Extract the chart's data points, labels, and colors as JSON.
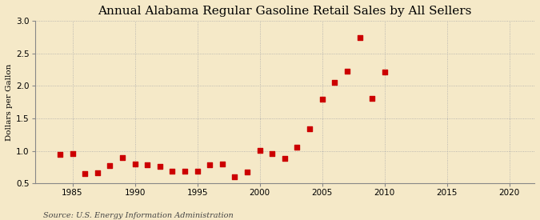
{
  "title": "Annual Alabama Regular Gasoline Retail Sales by All Sellers",
  "ylabel": "Dollars per Gallon",
  "source": "Source: U.S. Energy Information Administration",
  "background_color": "#f5e9c8",
  "xlim": [
    1982,
    2022
  ],
  "ylim": [
    0.5,
    3.0
  ],
  "xticks": [
    1985,
    1990,
    1995,
    2000,
    2005,
    2010,
    2015,
    2020
  ],
  "yticks": [
    0.5,
    1.0,
    1.5,
    2.0,
    2.5,
    3.0
  ],
  "years": [
    1984,
    1985,
    1986,
    1987,
    1988,
    1989,
    1990,
    1991,
    1992,
    1993,
    1994,
    1995,
    1996,
    1997,
    1998,
    1999,
    2000,
    2001,
    2002,
    2003,
    2004,
    2005,
    2006,
    2007,
    2008,
    2009,
    2010
  ],
  "values": [
    0.95,
    0.955,
    0.655,
    0.66,
    0.775,
    0.895,
    0.8,
    0.78,
    0.755,
    0.69,
    0.685,
    0.685,
    0.79,
    0.8,
    0.6,
    0.67,
    1.01,
    0.955,
    0.88,
    1.05,
    1.34,
    1.79,
    2.06,
    2.23,
    2.74,
    1.805,
    2.22
  ],
  "marker_color": "#cc0000",
  "marker_size": 18,
  "grid_color": "#aaaaaa",
  "grid_linestyle": ":",
  "title_fontsize": 11,
  "label_fontsize": 7.5,
  "tick_fontsize": 7.5,
  "source_fontsize": 7
}
